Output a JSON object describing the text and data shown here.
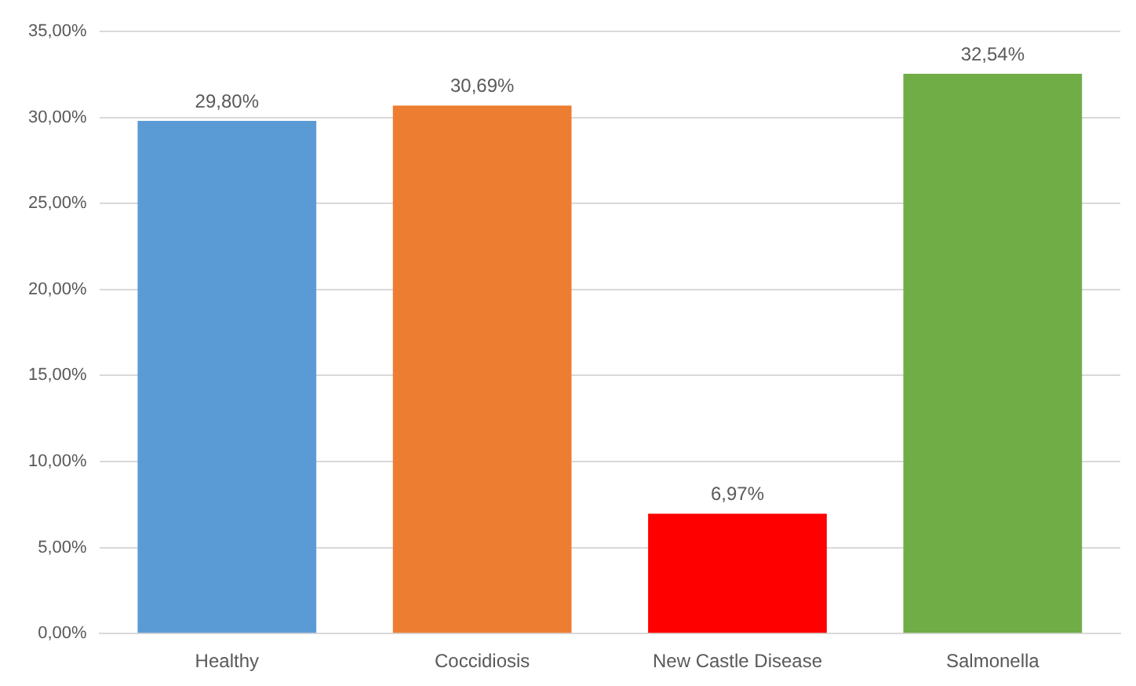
{
  "chart_data": {
    "type": "bar",
    "categories": [
      "Healthy",
      "Coccidiosis",
      "New Castle Disease",
      "Salmonella"
    ],
    "values": [
      29.8,
      30.69,
      6.97,
      32.54
    ],
    "colors": [
      "#5b9bd5",
      "#ed7d31",
      "#ff0000",
      "#70ad47"
    ],
    "value_labels": [
      "29,80%",
      "30,69%",
      "6,97%",
      "32,54%"
    ],
    "ylim": [
      0,
      35
    ],
    "yticks": [
      {
        "value": 0,
        "label": "0,00%"
      },
      {
        "value": 5,
        "label": "5,00%"
      },
      {
        "value": 10,
        "label": "10,00%"
      },
      {
        "value": 15,
        "label": "15,00%"
      },
      {
        "value": 20,
        "label": "20,00%"
      },
      {
        "value": 25,
        "label": "25,00%"
      },
      {
        "value": 30,
        "label": "30,00%"
      },
      {
        "value": 35,
        "label": "35,00%"
      }
    ],
    "grid": "y"
  }
}
